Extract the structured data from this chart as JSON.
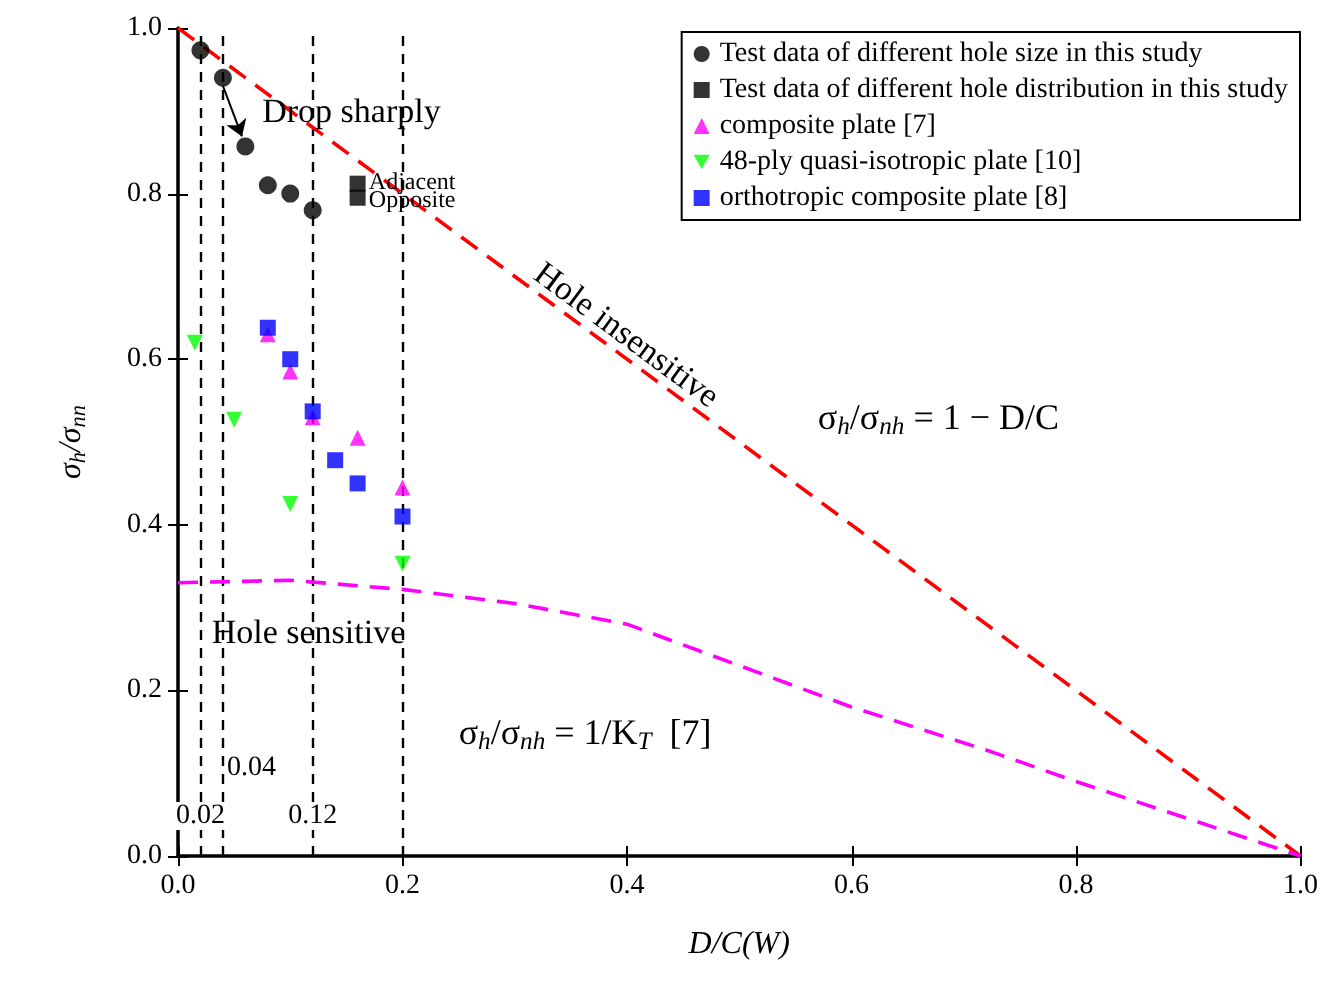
{
  "chart_data": {
    "type": "scatter",
    "xlabel": "D/C(W)",
    "ylabel": "σ$_{h}$/σ$_{nn}$",
    "xlim": [
      0,
      1
    ],
    "ylim": [
      0,
      1
    ],
    "xticks": [
      {
        "value": 0,
        "label": "0.0"
      },
      {
        "value": 0.2,
        "label": "0.2"
      },
      {
        "value": 0.4,
        "label": "0.4"
      },
      {
        "value": 0.6,
        "label": "0.6"
      },
      {
        "value": 0.8,
        "label": "0.8"
      },
      {
        "value": 1,
        "label": "1.0"
      }
    ],
    "yticks": [
      {
        "value": 0,
        "label": "0.0"
      },
      {
        "value": 0.2,
        "label": "0.2"
      },
      {
        "value": 0.4,
        "label": "0.4"
      },
      {
        "value": 0.6,
        "label": "0.6"
      },
      {
        "value": 0.8,
        "label": "0.8"
      },
      {
        "value": 1,
        "label": "1.0"
      }
    ],
    "grid": false,
    "legend": "top right",
    "series": [
      {
        "name": "Test data of different hole size in this study",
        "color": "#000000",
        "marker": "circle",
        "x": [
          0.02,
          0.04,
          0.06,
          0.08,
          0.1,
          0.12
        ],
        "values": [
          0.973,
          0.94,
          0.857,
          0.81,
          0.8,
          0.78
        ]
      },
      {
        "name": "Test data of different hole distribution in this study",
        "color": "#000000",
        "marker": "square",
        "x": [
          0.16,
          0.16
        ],
        "values": [
          0.812,
          0.795
        ]
      },
      {
        "name": "composite plate [7]",
        "color": "#ff00ff",
        "marker": "triangle",
        "x": [
          0.08,
          0.1,
          0.12,
          0.16,
          0.2
        ],
        "values": [
          0.63,
          0.585,
          0.53,
          0.505,
          0.445
        ]
      },
      {
        "name": "48-ply quasi-isotropic plate [10]",
        "color": "#00ff00",
        "marker": "triangle-down",
        "x": [
          0.015,
          0.05,
          0.1,
          0.2
        ],
        "values": [
          0.62,
          0.527,
          0.425,
          0.353
        ]
      },
      {
        "name": "orthotropic composite plate [8]",
        "color": "#0000ff",
        "marker": "square",
        "x": [
          0.08,
          0.1,
          0.12,
          0.14,
          0.16,
          0.2
        ],
        "values": [
          0.638,
          0.6,
          0.537,
          0.478,
          0.45,
          0.41
        ]
      },
      {
        "type": "line",
        "color": "#ff0000",
        "marker": "none",
        "line_style": "dashed",
        "x": [
          0,
          1
        ],
        "values": [
          1,
          0
        ]
      },
      {
        "type": "line",
        "color": "#ff00ff",
        "marker": "none",
        "line_style": "dashed",
        "x": [
          0,
          0.1,
          0.2,
          0.3,
          0.4,
          0.5,
          0.6,
          0.72,
          0.8,
          0.9,
          1
        ],
        "values": [
          0.33,
          0.333,
          0.322,
          0.305,
          0.28,
          0.23,
          0.18,
          0.128,
          0.09,
          0.045,
          0
        ]
      }
    ],
    "ref_lines": [
      {
        "axis": "x",
        "value": 0.02,
        "label": "0.02"
      },
      {
        "axis": "x",
        "value": 0.04,
        "label": "0.04"
      },
      {
        "axis": "x",
        "value": 0.12,
        "label": "0.12"
      },
      {
        "axis": "x",
        "value": 0.2,
        "label": null
      }
    ],
    "annotations": [
      "Drop sharply",
      {
        "text": "Adjacent",
        "x": 0.17,
        "y": 0.815
      },
      {
        "text": "Opposite",
        "x": 0.17,
        "y": 0.793
      },
      "Hole insensitive",
      "Hole sensitive",
      "σ$_{h}$/σ$_{nh}$ = 1 − D/C",
      "σ$_{h}$/σ$_{nh}$ = 1/K$_{T}$  [7]"
    ]
  }
}
